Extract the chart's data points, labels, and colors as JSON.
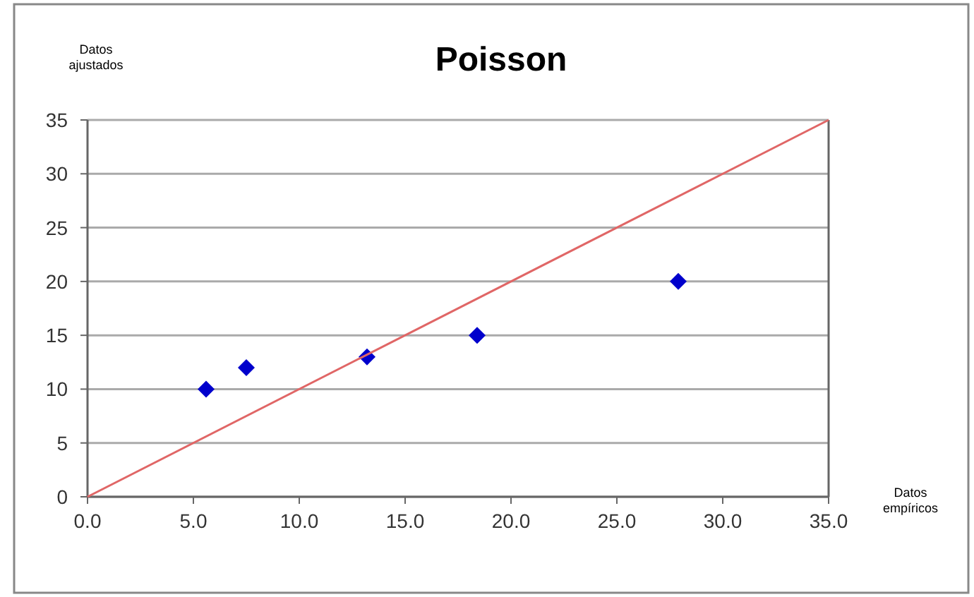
{
  "chart_data": {
    "type": "scatter",
    "title": "Poisson",
    "xlabel": "Datos empíricos",
    "ylabel": "Datos ajustados",
    "x": [
      5.6,
      7.5,
      13.2,
      18.4,
      27.9
    ],
    "series": [
      {
        "color": "#0000cc",
        "values": [
          10,
          12,
          13,
          15,
          20
        ],
        "marker": "diamond"
      },
      {
        "type": "line",
        "color": "#e06666",
        "x": [
          0,
          35
        ],
        "values": [
          0,
          35
        ],
        "marker": "none",
        "line_style": "solid"
      }
    ],
    "xlim": [
      0,
      35
    ],
    "xticks": [
      {
        "value": 0,
        "label": "0.0"
      },
      {
        "value": 5,
        "label": "5.0"
      },
      {
        "value": 10,
        "label": "10.0"
      },
      {
        "value": 15,
        "label": "15.0"
      },
      {
        "value": 20,
        "label": "20.0"
      },
      {
        "value": 25,
        "label": "25.0"
      },
      {
        "value": 30,
        "label": "30.0"
      },
      {
        "value": 35,
        "label": "35.0"
      }
    ],
    "ylim": [
      0,
      35
    ],
    "yticks": [
      0,
      5,
      10,
      15,
      20,
      25,
      30,
      35
    ],
    "grid": "y"
  }
}
